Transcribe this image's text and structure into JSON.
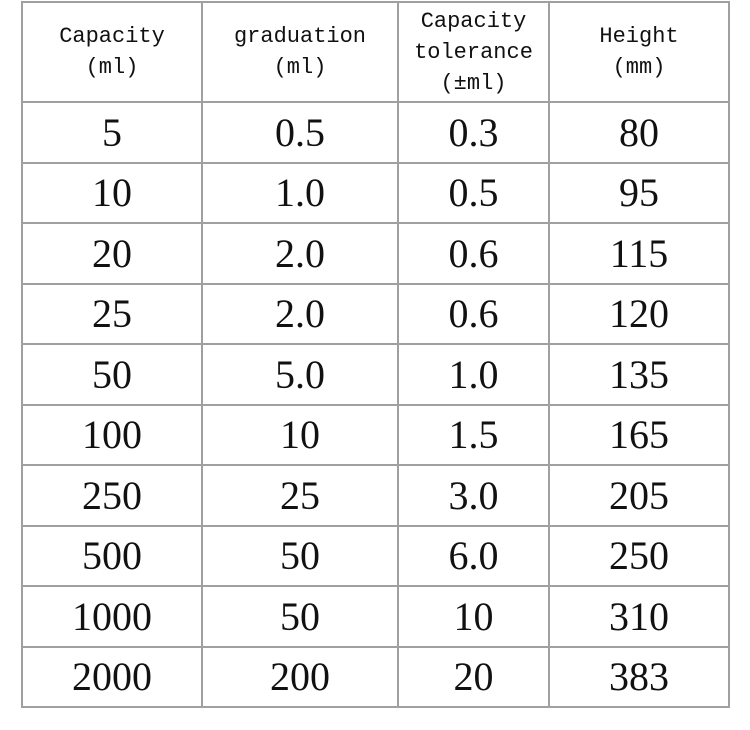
{
  "table": {
    "header": [
      [
        "Capacity",
        "(ml)"
      ],
      [
        "graduation",
        "(ml)"
      ],
      [
        "Capacity",
        "tolerance",
        "(±ml)"
      ],
      [
        "Height",
        "(mm)"
      ]
    ],
    "rows": [
      [
        "5",
        "0.5",
        "0.3",
        "80"
      ],
      [
        "10",
        "1.0",
        "0.5",
        "95"
      ],
      [
        "20",
        "2.0",
        "0.6",
        "115"
      ],
      [
        "25",
        "2.0",
        "0.6",
        "120"
      ],
      [
        "50",
        "5.0",
        "1.0",
        "135"
      ],
      [
        "100",
        "10",
        "1.5",
        "165"
      ],
      [
        "250",
        "25",
        "3.0",
        "205"
      ],
      [
        "500",
        "50",
        "6.0",
        "250"
      ],
      [
        "1000",
        "50",
        "10",
        "310"
      ],
      [
        "2000",
        "200",
        "20",
        "383"
      ]
    ]
  }
}
